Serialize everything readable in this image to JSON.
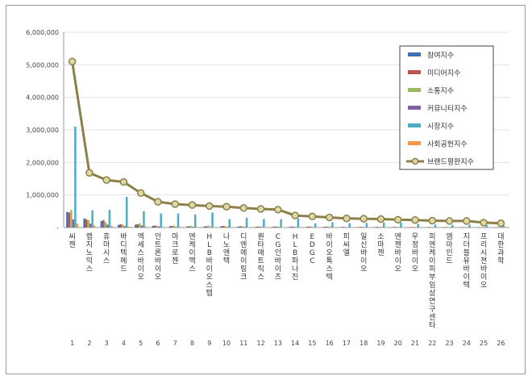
{
  "chart_data": {
    "type": "bar",
    "ylim": [
      0,
      6000000
    ],
    "yticks": [
      "6,000,000",
      "5,000,000",
      "4,000,000",
      "3,000,000",
      "2,000,000",
      "1,000,000",
      "-"
    ],
    "ytick_values": [
      6000000,
      5000000,
      4000000,
      3000000,
      2000000,
      1000000,
      0
    ],
    "legend_position": "right",
    "categories": [
      "씨젠",
      "랩지노믹스",
      "휴마시스",
      "바디텍메드",
      "엑세스바이오",
      "인트론바이오",
      "마크로젠",
      "엔케이맥스",
      "HLB바이오스텝",
      "나노엔텍",
      "디엔에이링크",
      "퀀타매트릭스",
      "CG인바이츠",
      "HLB파나진",
      "EDGC",
      "바이오톡스텍",
      "피씨엘",
      "일신바이오",
      "소마젠",
      "엔젠바이오",
      "우정바이오",
      "피엔케이피부임상연구센타",
      "엠아인드",
      "지더블유바이텍",
      "프리시젼바이오",
      "대한과학"
    ],
    "ranks": [
      "1",
      "2",
      "3",
      "4",
      "5",
      "6",
      "7",
      "8",
      "9",
      "10",
      "11",
      "12",
      "13",
      "14",
      "15",
      "16",
      "17",
      "18",
      "19",
      "20",
      "21",
      "22",
      "23",
      "24",
      "25",
      "26"
    ],
    "series": [
      {
        "name": "참여지수",
        "kind": "bar",
        "color": "#3f6fb5",
        "values": [
          480000,
          280000,
          200000,
          80000,
          90000,
          50000,
          40000,
          30000,
          30000,
          40000,
          30000,
          20000,
          20000,
          20000,
          20000,
          20000,
          15000,
          15000,
          15000,
          15000,
          10000,
          10000,
          10000,
          10000,
          8000,
          8000
        ]
      },
      {
        "name": "미디어지수",
        "kind": "bar",
        "color": "#c0504d",
        "values": [
          460000,
          250000,
          230000,
          100000,
          100000,
          60000,
          50000,
          40000,
          40000,
          50000,
          40000,
          30000,
          30000,
          30000,
          30000,
          25000,
          20000,
          20000,
          20000,
          20000,
          15000,
          15000,
          15000,
          12000,
          10000,
          10000
        ]
      },
      {
        "name": "소통지수",
        "kind": "bar",
        "color": "#9bbb59",
        "values": [
          540000,
          230000,
          160000,
          90000,
          130000,
          60000,
          60000,
          50000,
          60000,
          40000,
          40000,
          40000,
          40000,
          30000,
          30000,
          30000,
          20000,
          25000,
          20000,
          20000,
          15000,
          15000,
          15000,
          15000,
          12000,
          12000
        ]
      },
      {
        "name": "커뮤니티지수",
        "kind": "bar",
        "color": "#8064a2",
        "values": [
          250000,
          120000,
          90000,
          40000,
          60000,
          30000,
          20000,
          20000,
          20000,
          20000,
          20000,
          15000,
          15000,
          10000,
          10000,
          10000,
          8000,
          8000,
          8000,
          8000,
          5000,
          5000,
          5000,
          5000,
          5000,
          5000
        ]
      },
      {
        "name": "시장지수",
        "kind": "bar",
        "color": "#4bacc6",
        "values": [
          3100000,
          530000,
          540000,
          940000,
          500000,
          430000,
          430000,
          400000,
          460000,
          260000,
          300000,
          260000,
          260000,
          280000,
          130000,
          160000,
          130000,
          140000,
          150000,
          150000,
          110000,
          90000,
          80000,
          90000,
          70000,
          60000
        ]
      },
      {
        "name": "사회공헌지수",
        "kind": "bar",
        "color": "#f79646",
        "values": [
          120000,
          60000,
          50000,
          30000,
          30000,
          20000,
          20000,
          15000,
          15000,
          15000,
          10000,
          10000,
          10000,
          10000,
          8000,
          8000,
          6000,
          6000,
          6000,
          6000,
          5000,
          5000,
          5000,
          5000,
          4000,
          4000
        ]
      },
      {
        "name": "브랜드평판지수",
        "kind": "line",
        "color": "#8b8048",
        "marker_fill": "#ded8a6",
        "values": [
          5100000,
          1680000,
          1460000,
          1400000,
          1060000,
          790000,
          720000,
          690000,
          660000,
          640000,
          600000,
          570000,
          550000,
          370000,
          340000,
          310000,
          280000,
          270000,
          260000,
          240000,
          230000,
          210000,
          200000,
          200000,
          150000,
          130000
        ]
      }
    ]
  }
}
